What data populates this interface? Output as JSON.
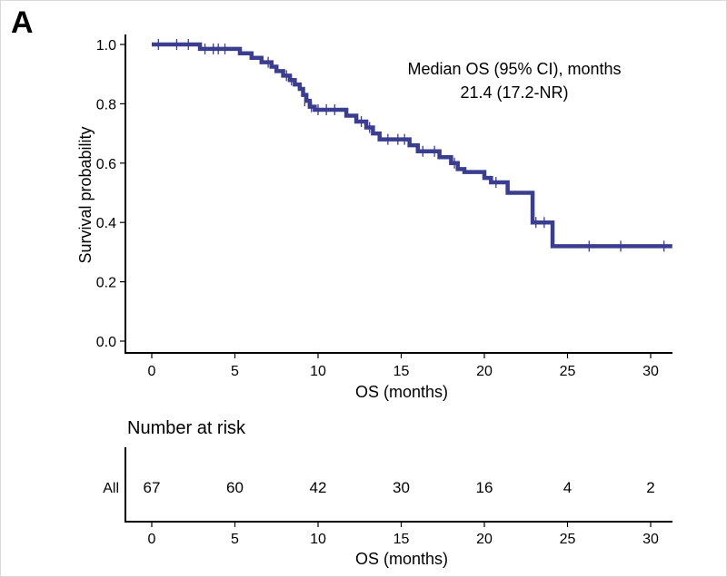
{
  "panel_label": "A",
  "colors": {
    "curve": "#3b3d8f",
    "axis": "#000000",
    "strata_label": "#3b3d8f"
  },
  "chart_data": [
    {
      "type": "line",
      "subtype": "kaplan-meier",
      "xlabel": "OS (months)",
      "ylabel": "Survival probability",
      "x_ticks": [
        "0",
        "5",
        "10",
        "15",
        "20",
        "25",
        "30"
      ],
      "y_ticks": [
        "0.0",
        "0.2",
        "0.4",
        "0.6",
        "0.8",
        "1.0"
      ],
      "xlim": [
        -1.5,
        31.5
      ],
      "ylim": [
        -0.04,
        1.02
      ],
      "annotation": {
        "line1": "Median OS (95% CI), months",
        "line2": "21.4 (17.2-NR)"
      },
      "series": [
        {
          "name": "All",
          "steps": [
            [
              0,
              1.0
            ],
            [
              2.9,
              0.985
            ],
            [
              5.3,
              0.97
            ],
            [
              6.0,
              0.955
            ],
            [
              6.6,
              0.94
            ],
            [
              7.2,
              0.925
            ],
            [
              7.5,
              0.91
            ],
            [
              7.9,
              0.895
            ],
            [
              8.3,
              0.88
            ],
            [
              8.6,
              0.865
            ],
            [
              8.9,
              0.85
            ],
            [
              9.1,
              0.83
            ],
            [
              9.3,
              0.81
            ],
            [
              9.5,
              0.79
            ],
            [
              9.8,
              0.78
            ],
            [
              11.7,
              0.76
            ],
            [
              12.3,
              0.74
            ],
            [
              12.9,
              0.72
            ],
            [
              13.3,
              0.7
            ],
            [
              13.7,
              0.68
            ],
            [
              15.5,
              0.66
            ],
            [
              16.0,
              0.64
            ],
            [
              17.3,
              0.62
            ],
            [
              18.0,
              0.6
            ],
            [
              18.4,
              0.58
            ],
            [
              18.8,
              0.57
            ],
            [
              20.0,
              0.55
            ],
            [
              20.4,
              0.535
            ],
            [
              21.4,
              0.5
            ],
            [
              22.9,
              0.4
            ],
            [
              24.1,
              0.32
            ],
            [
              31.3,
              0.32
            ]
          ],
          "censored": [
            [
              0.4,
              1.0
            ],
            [
              1.5,
              1.0
            ],
            [
              2.2,
              1.0
            ],
            [
              3.2,
              0.985
            ],
            [
              3.7,
              0.985
            ],
            [
              4.0,
              0.985
            ],
            [
              4.4,
              0.985
            ],
            [
              7.0,
              0.94
            ],
            [
              8.1,
              0.895
            ],
            [
              8.4,
              0.88
            ],
            [
              9.2,
              0.81
            ],
            [
              9.6,
              0.79
            ],
            [
              10.0,
              0.78
            ],
            [
              10.5,
              0.78
            ],
            [
              11.0,
              0.78
            ],
            [
              12.6,
              0.74
            ],
            [
              13.1,
              0.72
            ],
            [
              14.2,
              0.68
            ],
            [
              14.8,
              0.68
            ],
            [
              15.2,
              0.68
            ],
            [
              16.3,
              0.64
            ],
            [
              17.0,
              0.64
            ],
            [
              18.2,
              0.6
            ],
            [
              20.7,
              0.535
            ],
            [
              23.1,
              0.4
            ],
            [
              23.6,
              0.4
            ],
            [
              26.3,
              0.32
            ],
            [
              28.2,
              0.32
            ],
            [
              30.8,
              0.32
            ]
          ]
        }
      ]
    },
    {
      "type": "table",
      "title": "Number at risk",
      "xlabel": "OS (months)",
      "x_ticks": [
        "0",
        "5",
        "10",
        "15",
        "20",
        "25",
        "30"
      ],
      "row_label": "All",
      "times": [
        0,
        5,
        10,
        15,
        20,
        25,
        30
      ],
      "values": [
        "67",
        "60",
        "42",
        "30",
        "16",
        "4",
        "2"
      ]
    }
  ]
}
